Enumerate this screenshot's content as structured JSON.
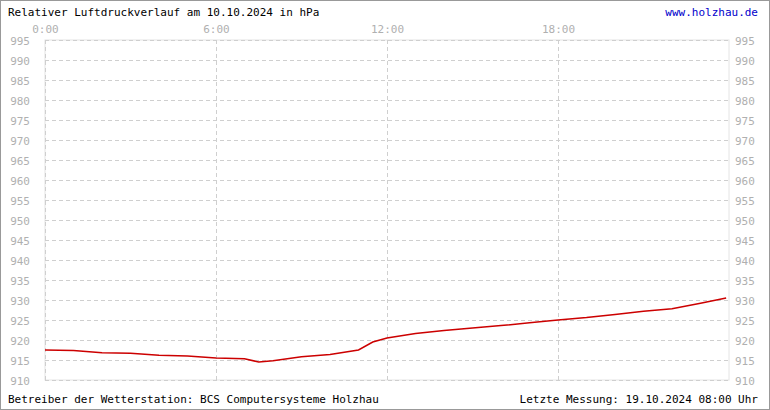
{
  "chart_data": {
    "type": "line",
    "title": "Relativer Luftdruckverlauf am 10.10.2024 in hPa",
    "url": "www.holzhau.de",
    "footer_left": "Betreiber der Wetterstation: BCS Computersysteme Holzhau",
    "footer_right": "Letzte Messung: 19.10.2024 08:00 Uhr",
    "x": [
      0,
      1,
      2,
      3,
      4,
      5,
      6,
      7,
      7.5,
      8,
      9,
      10,
      11,
      11.5,
      12,
      13,
      14,
      15,
      16,
      17,
      18,
      19,
      20,
      21,
      22,
      23,
      23.9
    ],
    "values": [
      917.5,
      917.4,
      916.8,
      916.7,
      916.2,
      916.0,
      915.5,
      915.3,
      914.5,
      914.8,
      915.8,
      916.4,
      917.5,
      919.5,
      920.5,
      921.6,
      922.4,
      923.0,
      923.6,
      924.3,
      925.0,
      925.6,
      926.4,
      927.2,
      927.8,
      929.2,
      930.5
    ],
    "color": "#cc0000",
    "xlim": [
      0,
      24
    ],
    "xticks": [
      {
        "value": 0,
        "label": "0:00"
      },
      {
        "value": 6,
        "label": "6:00"
      },
      {
        "value": 12,
        "label": "12:00"
      },
      {
        "value": 18,
        "label": "18:00"
      }
    ],
    "ylim": [
      910,
      995
    ],
    "yticks": [
      910,
      915,
      920,
      925,
      930,
      935,
      940,
      945,
      950,
      955,
      960,
      965,
      970,
      975,
      980,
      985,
      990,
      995
    ],
    "grid": true
  }
}
